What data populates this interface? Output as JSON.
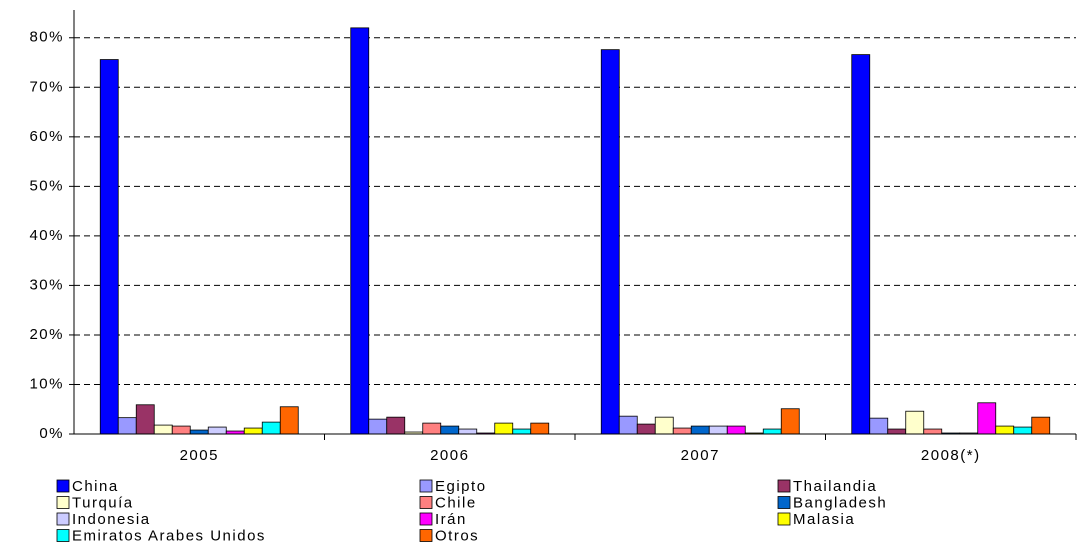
{
  "chart_data": {
    "type": "bar",
    "categories": [
      "2005",
      "2006",
      "2007",
      "2008(*)"
    ],
    "series": [
      {
        "name": "China",
        "color": "#0000ff",
        "values": [
          75.6,
          82,
          77.6,
          76.6
        ]
      },
      {
        "name": "Egipto",
        "color": "#9999ff",
        "values": [
          3.3,
          3.0,
          3.6,
          3.2
        ]
      },
      {
        "name": "Thailandia",
        "color": "#993366",
        "values": [
          5.9,
          3.4,
          2.0,
          1.0
        ]
      },
      {
        "name": "Turquía",
        "color": "#ffffcc",
        "values": [
          1.8,
          0.4,
          3.4,
          4.6
        ]
      },
      {
        "name": "Chile",
        "color": "#ff8080",
        "values": [
          1.6,
          2.2,
          1.2,
          1.0
        ]
      },
      {
        "name": "Bangladesh",
        "color": "#0066cc",
        "values": [
          0.8,
          1.6,
          1.6,
          0.2
        ]
      },
      {
        "name": "Indonesia",
        "color": "#ccccff",
        "values": [
          1.4,
          1.0,
          1.6,
          0.2
        ]
      },
      {
        "name": "Irán",
        "color": "#ff00ff",
        "values": [
          0.6,
          0.2,
          1.6,
          6.3
        ]
      },
      {
        "name": "Malasia",
        "color": "#ffff00",
        "values": [
          1.2,
          2.2,
          0.2,
          1.6
        ]
      },
      {
        "name": "Emiratos Arabes Unidos",
        "color": "#00ffff",
        "values": [
          2.4,
          1.0,
          1.0,
          1.4
        ]
      },
      {
        "name": "Otros",
        "color": "#ff6600",
        "values": [
          5.5,
          2.2,
          5.1,
          3.4
        ]
      }
    ],
    "ylim": [
      0,
      85
    ],
    "yticks": [
      {
        "value": 0,
        "label": "0%"
      },
      {
        "value": 10,
        "label": "10%"
      },
      {
        "value": 20,
        "label": "20%"
      },
      {
        "value": 30,
        "label": "30%"
      },
      {
        "value": 40,
        "label": "40%"
      },
      {
        "value": 50,
        "label": "50%"
      },
      {
        "value": 60,
        "label": "60%"
      },
      {
        "value": 70,
        "label": "70%"
      },
      {
        "value": 80,
        "label": "80%"
      }
    ],
    "grid": true
  }
}
